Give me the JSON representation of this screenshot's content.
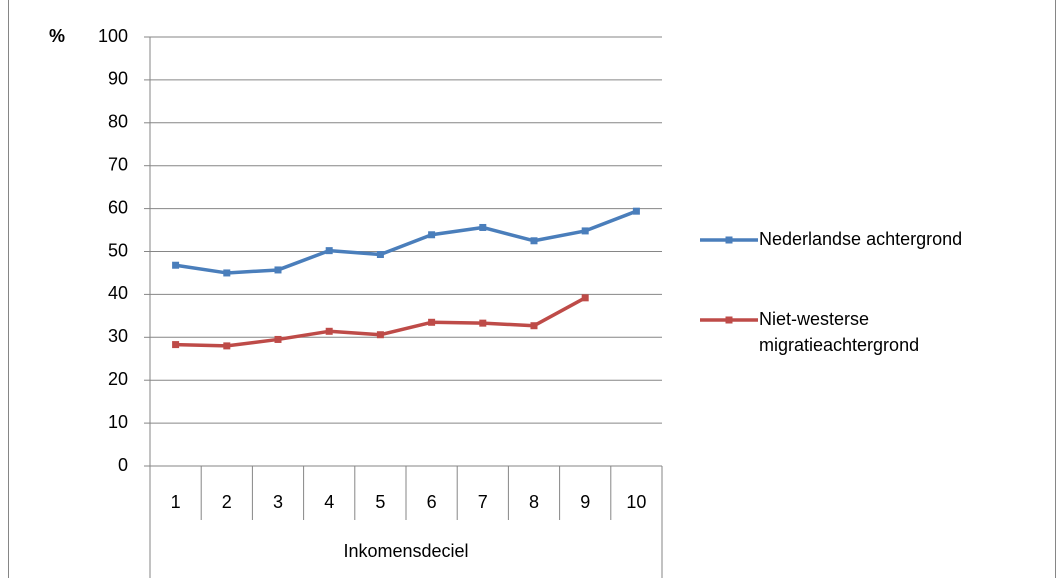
{
  "chart_data": {
    "type": "line",
    "y_label": "%",
    "x_label": "Inkomensdeciel",
    "categories": [
      "1",
      "2",
      "3",
      "4",
      "5",
      "6",
      "7",
      "8",
      "9",
      "10"
    ],
    "series": [
      {
        "name": "Nederlandse achtergrond",
        "color": "#4a7ebb",
        "values": [
          46.8,
          45,
          45.7,
          50.2,
          49.3,
          53.9,
          55.6,
          52.5,
          54.8,
          59.4
        ]
      },
      {
        "name": "Niet-westerse migratieachtergrond",
        "color": "#be4b48",
        "values": [
          28.3,
          28,
          29.5,
          31.4,
          30.6,
          33.5,
          33.3,
          32.7,
          39.2,
          null
        ]
      }
    ],
    "ylim": [
      0,
      100
    ],
    "yticks": [
      0,
      10,
      20,
      30,
      40,
      50,
      60,
      70,
      80,
      90,
      100
    ],
    "grid": true
  }
}
